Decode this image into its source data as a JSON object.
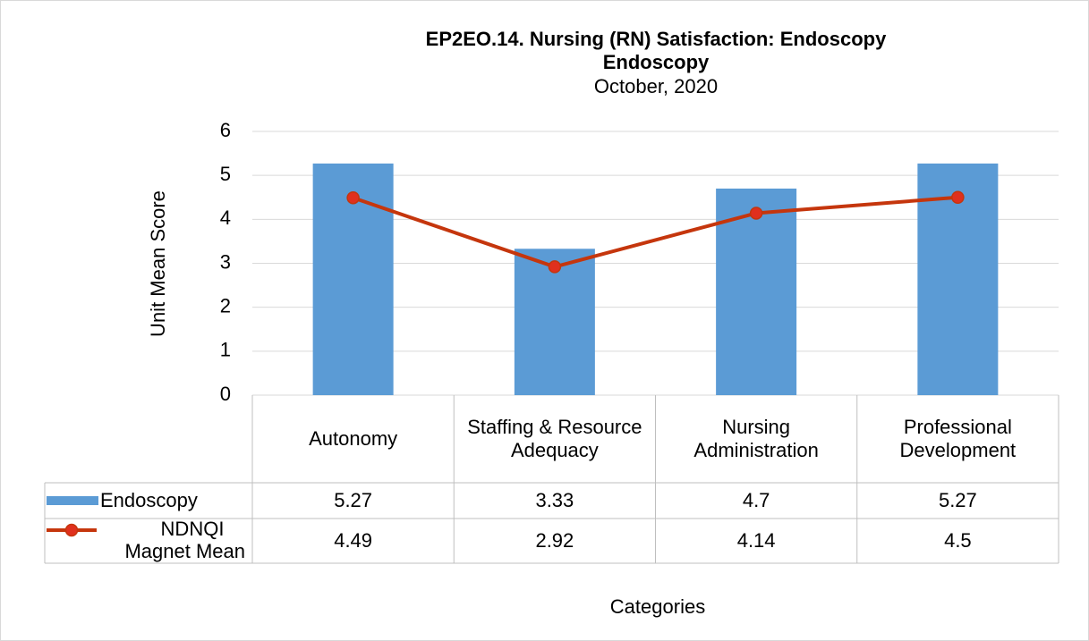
{
  "chart_data": {
    "type": "bar_line",
    "title": "EP2EO.14. Nursing (RN) Satisfaction: Endoscopy",
    "subtitle": "Endoscopy",
    "date": "October, 2020",
    "y_label": "Unit Mean Score",
    "x_label": "Categories",
    "categories": [
      "Autonomy",
      "Staffing & Resource Adequacy",
      "Nursing Administration",
      "Professional Development"
    ],
    "series": [
      {
        "name": "Endoscopy",
        "type": "bar",
        "color": "#5b9bd5",
        "values": [
          5.27,
          3.33,
          4.7,
          5.27
        ]
      },
      {
        "name": "NDNQI Magnet Mean",
        "type": "line",
        "color": "#c5360d",
        "marker_color": "#e0301e",
        "values": [
          4.49,
          2.92,
          4.14,
          4.5
        ]
      }
    ],
    "ylim": [
      0,
      6
    ],
    "yticks": [
      0,
      1,
      2,
      3,
      4,
      5,
      6
    ],
    "grid": true,
    "data_table": true
  }
}
